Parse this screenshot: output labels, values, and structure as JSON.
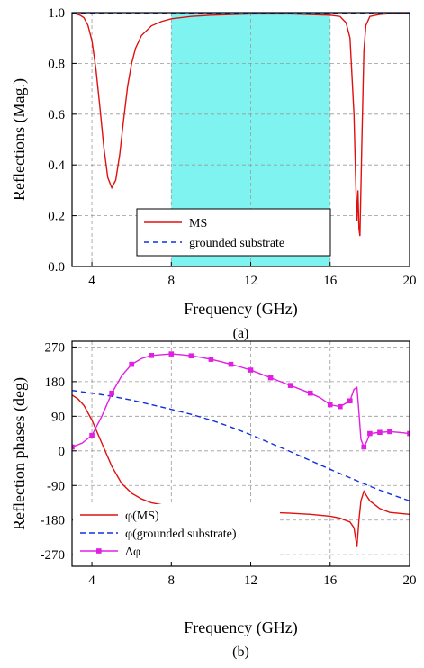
{
  "chart_data": [
    {
      "type": "line",
      "caption": "(a)",
      "xlabel": "Frequency (GHz)",
      "ylabel": "Reflections (Mag.)",
      "xlim": [
        3,
        20
      ],
      "ylim": [
        0.0,
        1.0
      ],
      "xticks": [
        4,
        8,
        12,
        16,
        20
      ],
      "xtick_labels": [
        "4",
        "8",
        "12",
        "16",
        "20"
      ],
      "yticks": [
        0.0,
        0.2,
        0.4,
        0.6,
        0.8,
        1.0
      ],
      "ytick_labels": [
        "0.0",
        "0.2",
        "0.4",
        "0.6",
        "0.8",
        "1.0"
      ],
      "grid": true,
      "shaded_band": {
        "x": [
          8,
          16
        ],
        "color": "#7ff3f0"
      },
      "legend_position": "bottom-center",
      "series": [
        {
          "name": "MS",
          "color": "#e01010",
          "dash": "solid",
          "marker": "none",
          "x": [
            3.0,
            3.2,
            3.4,
            3.6,
            3.8,
            4.0,
            4.2,
            4.4,
            4.6,
            4.8,
            5.0,
            5.2,
            5.4,
            5.6,
            5.8,
            6.0,
            6.2,
            6.5,
            7.0,
            7.5,
            8.0,
            9.0,
            10.0,
            12.0,
            14.0,
            16.0,
            16.5,
            16.8,
            17.0,
            17.2,
            17.3,
            17.35,
            17.4,
            17.45,
            17.5,
            17.6,
            17.7,
            17.8,
            18.0,
            18.5,
            19.0,
            20.0
          ],
          "y": [
            0.997,
            0.995,
            0.99,
            0.98,
            0.95,
            0.89,
            0.78,
            0.63,
            0.47,
            0.35,
            0.31,
            0.34,
            0.44,
            0.58,
            0.71,
            0.8,
            0.86,
            0.91,
            0.948,
            0.965,
            0.976,
            0.985,
            0.99,
            0.995,
            0.995,
            0.99,
            0.985,
            0.96,
            0.9,
            0.6,
            0.3,
            0.18,
            0.3,
            0.15,
            0.12,
            0.5,
            0.85,
            0.95,
            0.985,
            0.993,
            0.996,
            0.998
          ]
        },
        {
          "name": "grounded substrate",
          "color": "#1030e0",
          "dash": "dashed",
          "marker": "none",
          "x": [
            3,
            20
          ],
          "y": [
            0.997,
            0.997
          ]
        }
      ]
    },
    {
      "type": "line",
      "caption": "(b)",
      "xlabel": "Frequency (GHz)",
      "ylabel": "Reflection phases (deg)",
      "xlim": [
        3,
        20
      ],
      "ylim": [
        -300,
        285
      ],
      "xticks": [
        4,
        8,
        12,
        16,
        20
      ],
      "xtick_labels": [
        "4",
        "8",
        "12",
        "16",
        "20"
      ],
      "yticks": [
        -270,
        -180,
        -90,
        0,
        90,
        180,
        270
      ],
      "ytick_labels": [
        "-270",
        "-180",
        "-90",
        "0",
        "90",
        "180",
        "270"
      ],
      "grid": true,
      "legend_position": "bottom-left",
      "series": [
        {
          "name": "φ(MS)",
          "color": "#e01010",
          "dash": "solid",
          "marker": "none",
          "x": [
            3.0,
            3.3,
            3.6,
            4.0,
            4.5,
            5.0,
            5.5,
            6.0,
            6.5,
            7.0,
            8.0,
            9.0,
            10.0,
            12.0,
            14.0,
            15.0,
            16.0,
            16.5,
            17.0,
            17.2,
            17.35,
            17.45,
            17.55,
            17.7,
            17.85,
            18.0,
            18.5,
            19.0,
            20.0
          ],
          "y": [
            145,
            135,
            118,
            80,
            20,
            -40,
            -85,
            -110,
            -125,
            -135,
            -145,
            -150,
            -153,
            -158,
            -162,
            -165,
            -170,
            -175,
            -185,
            -200,
            -250,
            -180,
            -130,
            -105,
            -118,
            -130,
            -150,
            -160,
            -165
          ]
        },
        {
          "name": "φ(grounded substrate)",
          "color": "#1030e0",
          "dash": "dashed",
          "marker": "none",
          "x": [
            3,
            4,
            5,
            6,
            7,
            8,
            9,
            10,
            11,
            12,
            13,
            14,
            15,
            16,
            17,
            18,
            19,
            20
          ],
          "y": [
            157,
            150,
            142,
            132,
            120,
            108,
            95,
            80,
            62,
            42,
            20,
            -2,
            -25,
            -48,
            -70,
            -92,
            -112,
            -130
          ]
        },
        {
          "name": "Δφ",
          "color": "#e020e0",
          "dash": "solid",
          "marker": "square",
          "x": [
            3.0,
            3.5,
            4.0,
            4.5,
            5.0,
            5.5,
            6.0,
            6.5,
            7.0,
            7.5,
            8.0,
            8.5,
            9.0,
            9.5,
            10.0,
            10.5,
            11.0,
            11.5,
            12.0,
            12.5,
            13.0,
            13.5,
            14.0,
            14.5,
            15.0,
            15.5,
            16.0,
            16.5,
            17.0,
            17.2,
            17.35,
            17.45,
            17.55,
            17.7,
            17.85,
            18.0,
            18.5,
            19.0,
            19.5,
            20.0
          ],
          "y": [
            10,
            20,
            40,
            90,
            150,
            195,
            225,
            240,
            248,
            250,
            252,
            250,
            247,
            243,
            238,
            232,
            225,
            218,
            210,
            200,
            190,
            180,
            170,
            160,
            150,
            138,
            120,
            115,
            130,
            160,
            165,
            100,
            30,
            10,
            25,
            45,
            48,
            50,
            48,
            45
          ],
          "marker_x": [
            3,
            4,
            5,
            6,
            7,
            8,
            9,
            10,
            11,
            12,
            13,
            14,
            15,
            16,
            16.5,
            17,
            17.7,
            18,
            18.5,
            19,
            20
          ],
          "marker_y": [
            10,
            40,
            150,
            225,
            248,
            252,
            247,
            238,
            225,
            210,
            190,
            170,
            150,
            120,
            115,
            130,
            10,
            45,
            48,
            50,
            45
          ]
        }
      ]
    }
  ]
}
